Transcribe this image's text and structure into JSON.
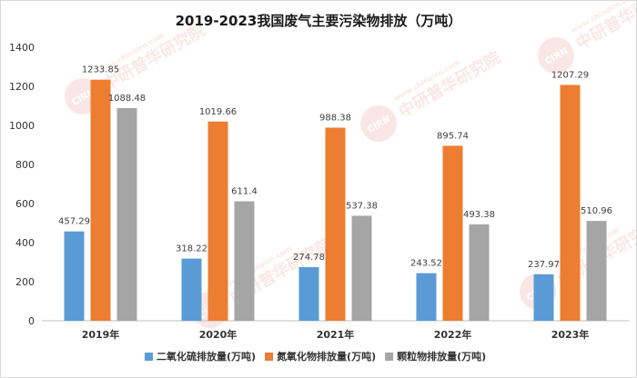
{
  "chart_data": {
    "type": "bar",
    "title": "2019-2023我国废气主要污染物排放（万吨）",
    "categories": [
      "2019年",
      "2020年",
      "2021年",
      "2022年",
      "2023年"
    ],
    "series": [
      {
        "name": "二氧化硫排放量(万吨)",
        "color": "#5b9bd5",
        "values": [
          457.29,
          318.22,
          274.78,
          243.52,
          237.97
        ],
        "labels": [
          "457.29",
          "318.22",
          "274.78",
          "243.52",
          "237.97"
        ]
      },
      {
        "name": "氮氧化物排放量(万吨)",
        "color": "#ed7d31",
        "values": [
          1233.85,
          1019.66,
          988.38,
          895.74,
          1207.29
        ],
        "labels": [
          "1233.85",
          "1019.66",
          "988.38",
          "895.74",
          "1207.29"
        ]
      },
      {
        "name": "颗粒物排放量(万吨)",
        "color": "#a5a5a5",
        "values": [
          1088.48,
          611.4,
          537.38,
          493.38,
          510.96
        ],
        "labels": [
          "1088.48",
          "611.4",
          "537.38",
          "493.38",
          "510.96"
        ]
      }
    ],
    "ylim": [
      0,
      1400
    ],
    "yticks": [
      0,
      200,
      400,
      600,
      800,
      1000,
      1200,
      1400
    ],
    "ytick_labels": [
      "0",
      "200",
      "400",
      "600",
      "800",
      "1000",
      "1200",
      "1400"
    ],
    "grid": false,
    "legend": "bottom"
  },
  "watermark": {
    "logo_text": "CIRN",
    "cn_text": "中研普华研究院",
    "url_text": "www.chinairn.com",
    "color": "#e05a4f"
  }
}
